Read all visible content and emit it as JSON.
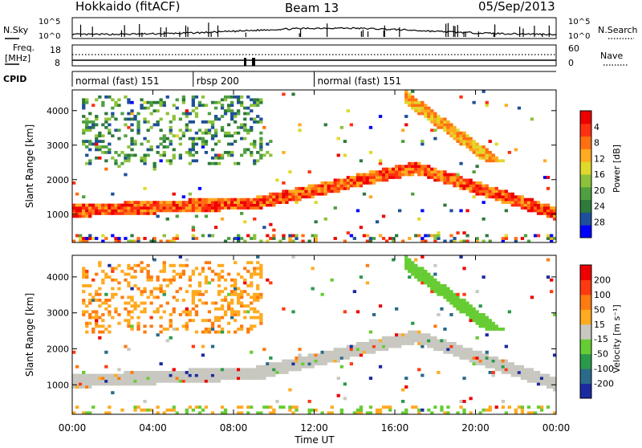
{
  "header": {
    "station": "Hokkaido (fitACF)",
    "beam": "Beam 13",
    "date": "05/Sep/2013"
  },
  "noise_panel": {
    "left_label": "N.Sky",
    "right_label": "N.Search",
    "left_ticks": [
      "10^5",
      "10^0"
    ],
    "right_ticks": [
      "10^5",
      "10^0"
    ]
  },
  "freq_panel": {
    "left_label_line1": "Freq.",
    "left_label_line2": "[MHz]",
    "left_ticks": [
      "18",
      "8"
    ],
    "right_label": "Nave",
    "right_ticks": [
      "60",
      "0"
    ]
  },
  "cpid": {
    "label": "CPID",
    "segments": [
      {
        "text": "normal (fast) 151",
        "start_hour": 0
      },
      {
        "text": "rbsp 200",
        "start_hour": 6.0
      },
      {
        "text": "normal (fast) 151",
        "start_hour": 12.0
      }
    ]
  },
  "chart_data": [
    {
      "type": "heatmap",
      "name": "power",
      "ylabel": "Slant Range [km]",
      "ylim": [
        180,
        4600
      ],
      "yticks": [
        1000,
        2000,
        3000,
        4000
      ],
      "xlim": [
        0,
        24
      ],
      "colorbar": {
        "label": "Power [dB]",
        "ticks": [
          "4",
          "8",
          "12",
          "16",
          "20",
          "24",
          "28"
        ],
        "colors": [
          "#0000ff",
          "#1f4f9a",
          "#2d7a3a",
          "#4ea040",
          "#8cc23a",
          "#e0d82a",
          "#ffaa20",
          "#ff7010",
          "#ff3010",
          "#ee0000"
        ]
      }
    },
    {
      "type": "heatmap",
      "name": "velocity",
      "ylabel": "Slant Range [km]",
      "ylim": [
        180,
        4600
      ],
      "yticks": [
        1000,
        2000,
        3000,
        4000
      ],
      "xlim": [
        0,
        24
      ],
      "colorbar": {
        "label": "Velocity [m s⁻¹]",
        "ticks": [
          "200",
          "100",
          "50",
          "15",
          "-15",
          "-50",
          "-100",
          "-200"
        ],
        "colors": [
          "#1a2aa0",
          "#2a6a8a",
          "#2a9a4a",
          "#66cc33",
          "#c8c8c0",
          "#ffaa20",
          "#ff7a10",
          "#ff3a10",
          "#ee0000"
        ]
      }
    }
  ],
  "x_axis": {
    "ticks": [
      "00:00",
      "04:00",
      "08:00",
      "12:00",
      "16:00",
      "20:00",
      "00:00"
    ],
    "label": "Time UT"
  }
}
